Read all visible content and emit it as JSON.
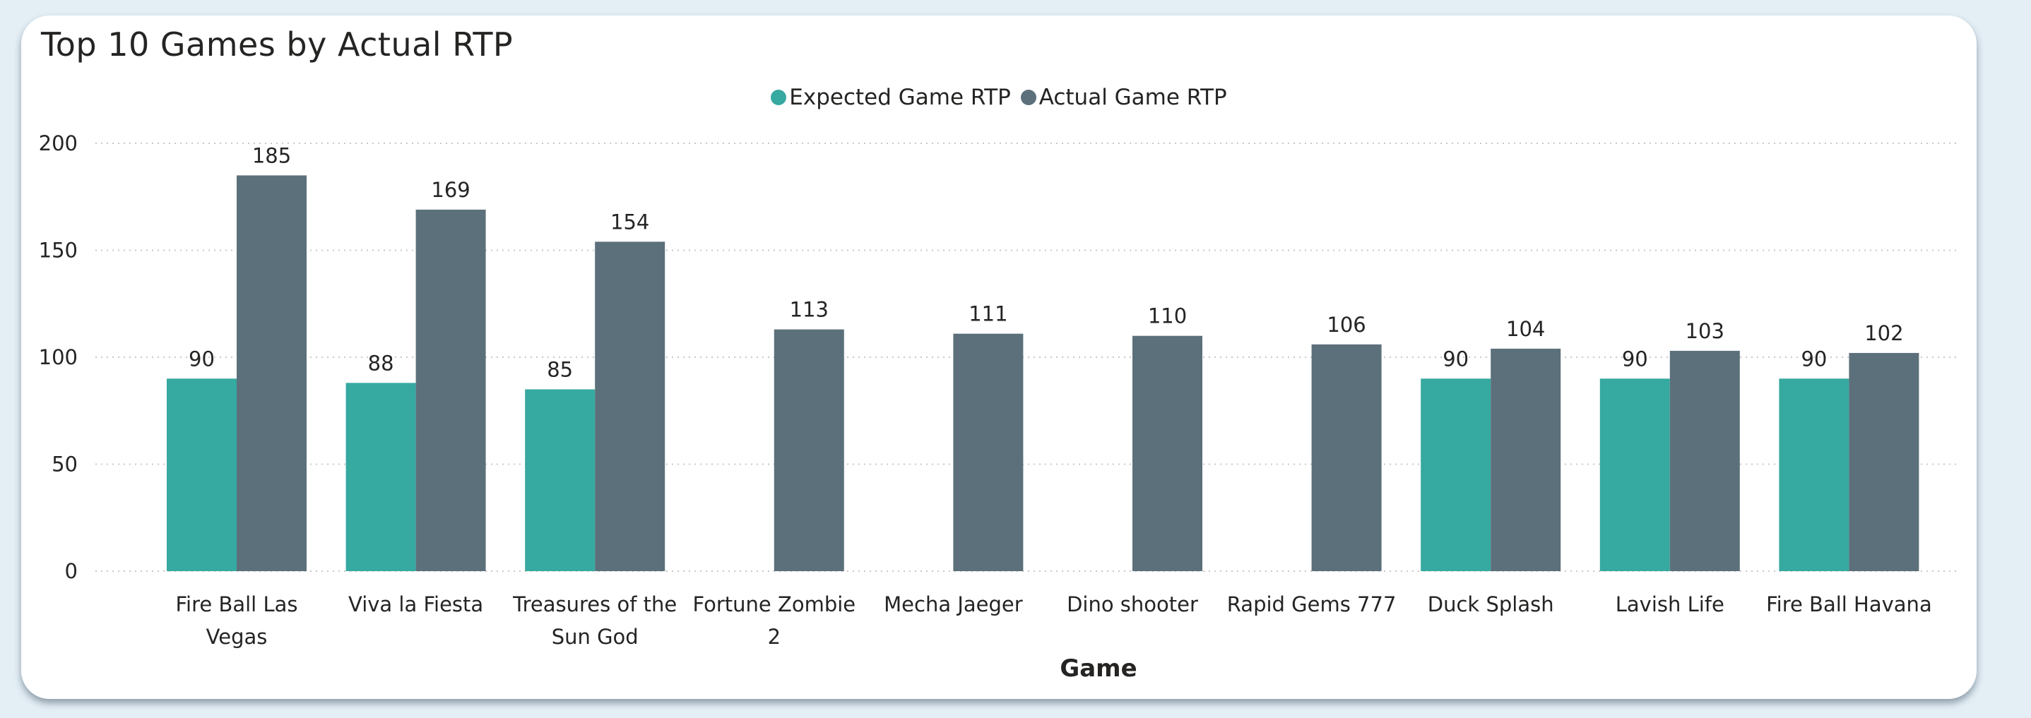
{
  "chart_data": {
    "type": "bar",
    "title": "Top 10 Games by Actual RTP",
    "xlabel": "Game",
    "ylabel": "",
    "ylim": [
      0,
      200
    ],
    "yticks": [
      0,
      50,
      100,
      150,
      200
    ],
    "grid": true,
    "legend_position": "top-center",
    "categories": [
      "Fire Ball Las Vegas",
      "Viva la Fiesta",
      "Treasures of the Sun God",
      "Fortune Zombie 2",
      "Mecha Jaeger",
      "Dino shooter",
      "Rapid Gems 777",
      "Duck Splash",
      "Lavish Life",
      "Fire Ball Havana"
    ],
    "category_lines": [
      [
        "Fire Ball Las",
        "Vegas"
      ],
      [
        "Viva la Fiesta"
      ],
      [
        "Treasures of the",
        "Sun God"
      ],
      [
        "Fortune Zombie",
        "2"
      ],
      [
        "Mecha Jaeger"
      ],
      [
        "Dino shooter"
      ],
      [
        "Rapid Gems 777"
      ],
      [
        "Duck Splash"
      ],
      [
        "Lavish Life"
      ],
      [
        "Fire Ball Havana"
      ]
    ],
    "series": [
      {
        "name": "Expected Game RTP",
        "color": "#36a9a0",
        "values": [
          90,
          88,
          85,
          null,
          null,
          null,
          null,
          90,
          90,
          90
        ]
      },
      {
        "name": "Actual Game RTP",
        "color": "#5c707b",
        "values": [
          185,
          169,
          154,
          113,
          111,
          110,
          106,
          104,
          103,
          102
        ]
      }
    ]
  },
  "colors": {
    "gridline": "#c8c8c8",
    "text": "#252423"
  }
}
